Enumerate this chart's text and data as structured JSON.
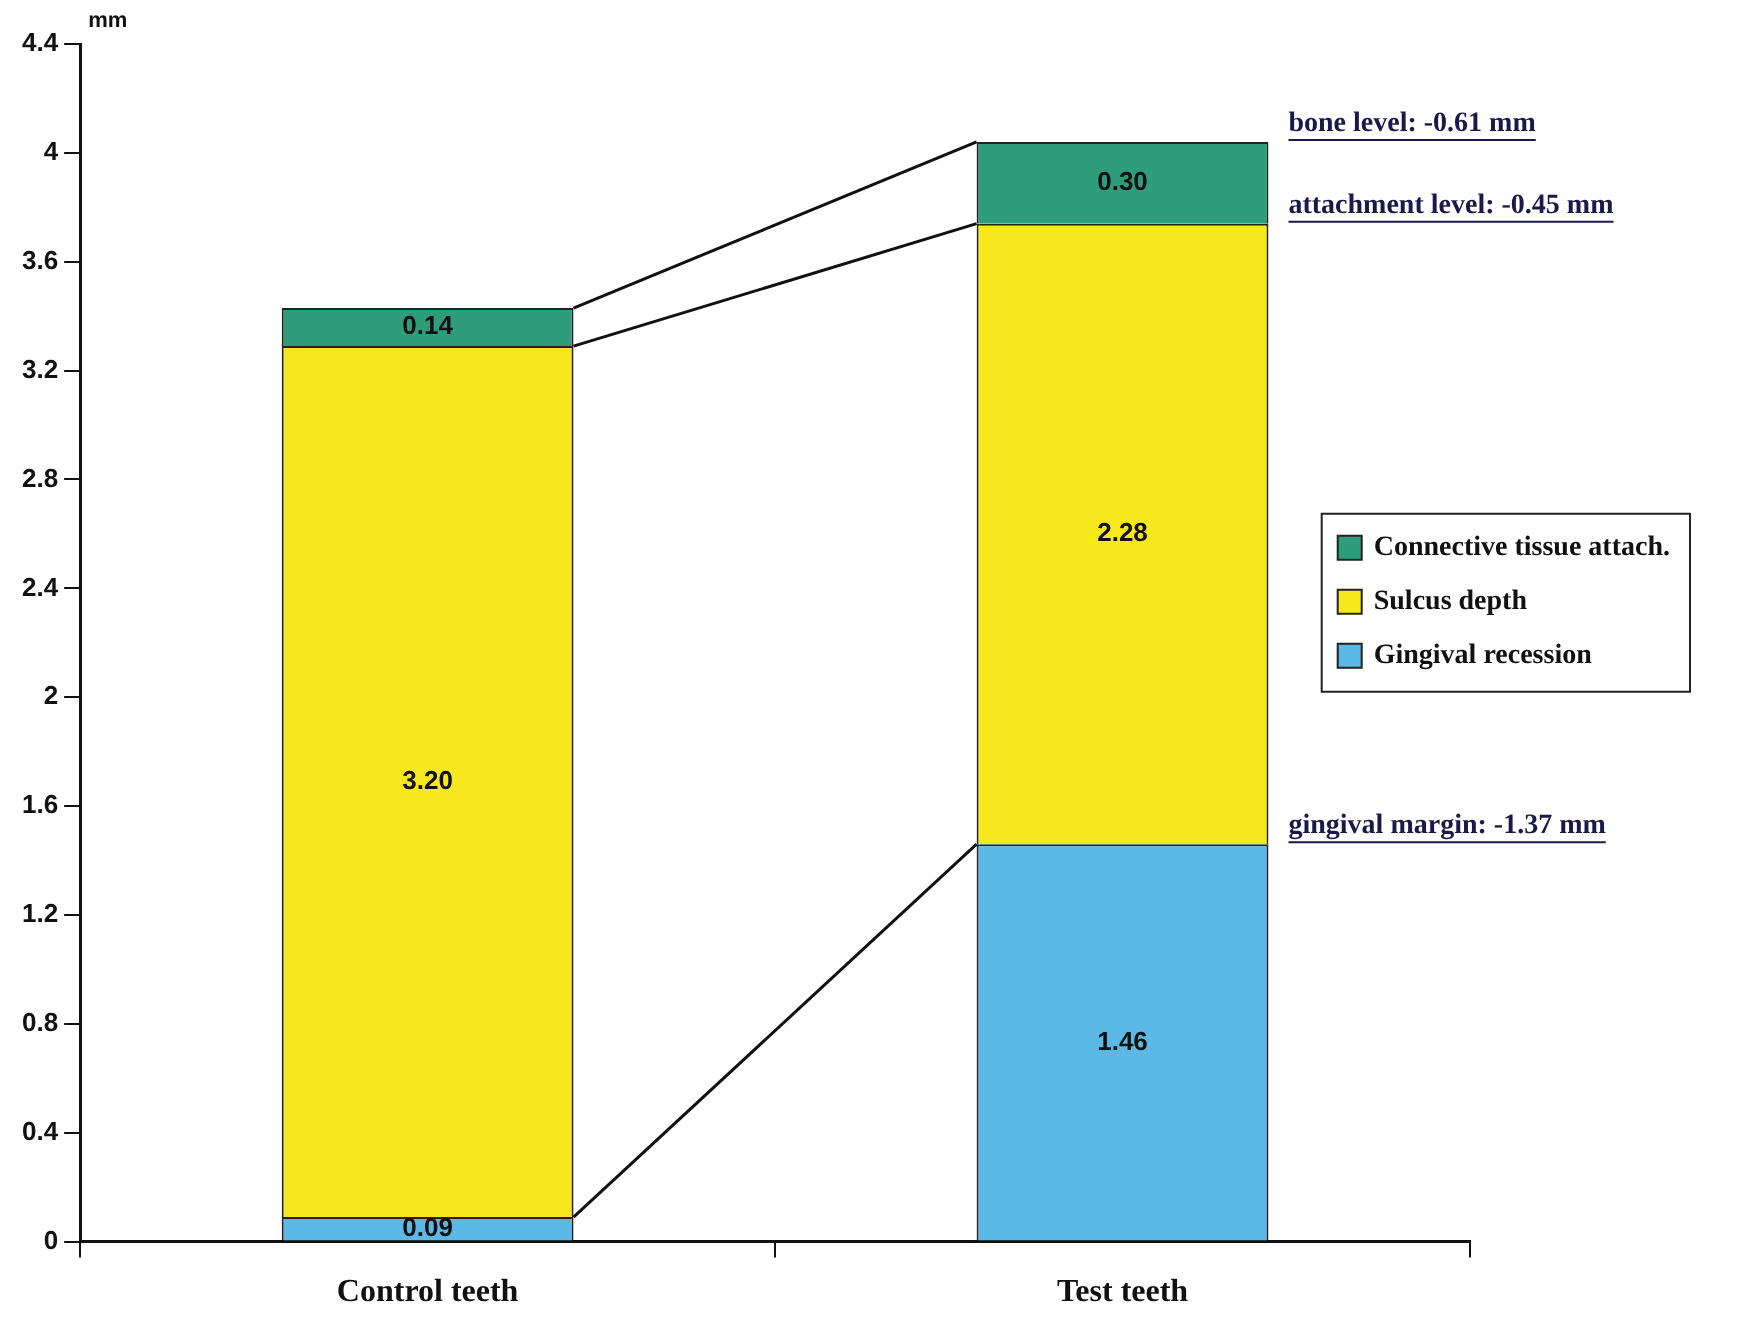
{
  "chart_data": {
    "type": "bar",
    "stacked": true,
    "ylabel": "mm",
    "categories": [
      "Control teeth",
      "Test teeth"
    ],
    "series": [
      {
        "name": "Gingival recession",
        "color": "#5cb8e6",
        "values": [
          0.09,
          1.46
        ]
      },
      {
        "name": "Sulcus depth",
        "color": "#f7e81e",
        "values": [
          3.2,
          2.28
        ]
      },
      {
        "name": "Connective tissue attach.",
        "color": "#2e9e7a",
        "values": [
          0.14,
          0.3
        ]
      }
    ],
    "value_labels": [
      [
        "0.09",
        "1.46"
      ],
      [
        "3.20",
        "2.28"
      ],
      [
        "0.14",
        "0.30"
      ]
    ],
    "ylim": [
      0,
      4.4
    ],
    "yticks": [
      0,
      0.4,
      0.8,
      1.2,
      1.6,
      2,
      2.4,
      2.8,
      3.2,
      3.6,
      4,
      4.4
    ],
    "grid": false,
    "legend": "right",
    "annotations": [
      "bone level: -0.61 mm",
      "attachment level: -0.45 mm",
      "gingival margin: -1.37 mm"
    ]
  }
}
